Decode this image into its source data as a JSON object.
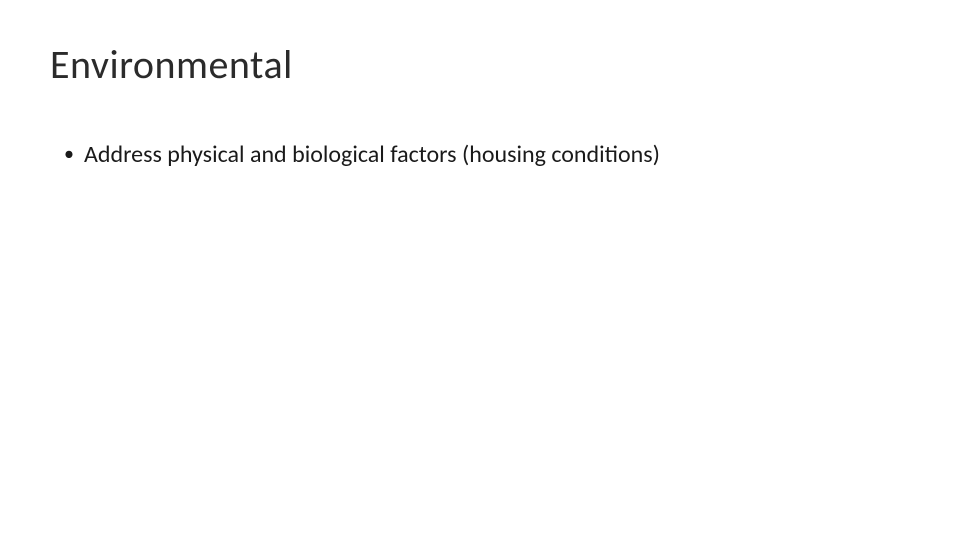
{
  "slide": {
    "title": "Environmental",
    "title_fontsize": 40,
    "title_fontweight": 300,
    "title_color": "#2b2b2b",
    "background_color": "#ffffff",
    "bullets": [
      {
        "marker": "•",
        "text": "Address physical and biological factors (housing conditions)"
      }
    ],
    "bullet_fontsize": 24,
    "bullet_color": "#1a1a1a"
  }
}
